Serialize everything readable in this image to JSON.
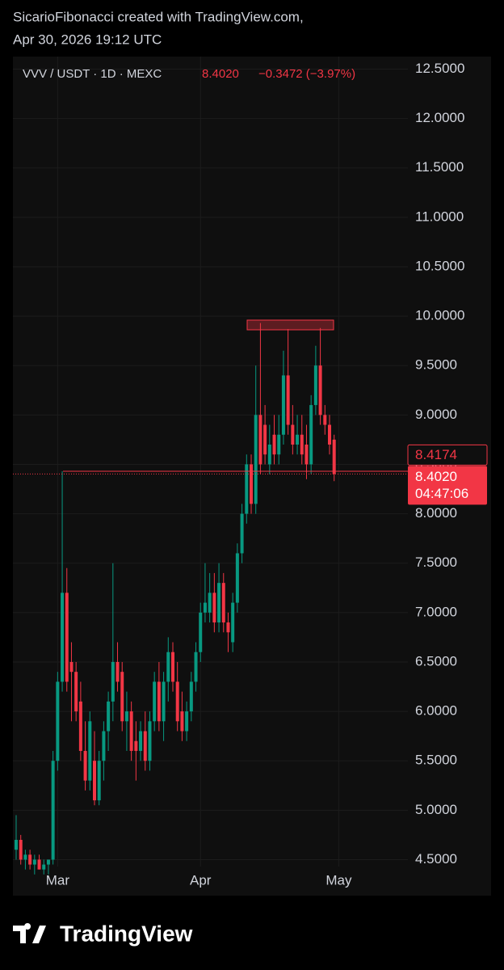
{
  "header": {
    "author_line": "SicarioFibonacci created with TradingView.com,",
    "date_line": "Apr 30, 2026 19:12 UTC"
  },
  "footer": {
    "brand": "TradingView"
  },
  "chart_data": {
    "type": "candlestick",
    "symbol": "VVV / USDT · 1D · MEXC",
    "last": "8.4020",
    "change": "−0.3472 (−3.97%)",
    "up_color": "#089981",
    "down_color": "#f23645",
    "open": [
      4.6,
      4.7,
      4.5,
      4.55,
      4.45,
      4.5,
      4.4,
      4.45,
      4.5,
      5.5,
      6.3,
      7.2,
      6.5,
      6.4,
      6.1,
      5.6,
      5.3,
      5.5,
      5.1,
      5.5,
      5.8,
      6.1,
      6.5,
      6.4,
      5.9,
      6.0,
      5.7,
      5.6,
      5.8,
      5.5,
      5.9,
      6.3,
      5.9,
      6.3,
      6.6,
      6.3,
      6.0,
      5.8,
      6.0,
      6.3,
      6.6,
      7.0,
      7.0,
      7.2,
      6.9,
      7.3,
      6.9,
      6.7,
      7.1,
      7.6,
      8.0,
      8.5,
      8.1,
      9.0,
      8.9,
      8.5,
      8.8,
      8.6,
      8.8,
      9.4,
      8.9,
      8.7,
      8.8,
      8.7,
      8.5,
      9.1,
      9.5,
      9.0,
      8.9,
      8.75
    ],
    "high": [
      4.95,
      4.75,
      4.6,
      4.6,
      4.55,
      4.55,
      4.5,
      4.5,
      5.6,
      6.4,
      8.43,
      7.45,
      6.7,
      6.5,
      6.3,
      5.9,
      6.0,
      5.8,
      5.6,
      5.9,
      6.2,
      7.5,
      6.7,
      6.5,
      6.2,
      6.1,
      5.9,
      5.9,
      6.0,
      6.0,
      6.4,
      6.5,
      6.4,
      6.75,
      6.7,
      6.5,
      6.2,
      6.1,
      6.4,
      6.7,
      7.1,
      7.5,
      7.4,
      7.4,
      7.5,
      7.4,
      7.0,
      7.2,
      7.7,
      8.1,
      8.6,
      8.6,
      9.5,
      9.93,
      9.1,
      8.9,
      9.0,
      9.0,
      9.65,
      9.87,
      9.1,
      9.0,
      9.0,
      8.9,
      9.2,
      9.7,
      9.88,
      9.1,
      9.0,
      8.8
    ],
    "low": [
      4.5,
      4.45,
      4.4,
      4.4,
      4.35,
      4.4,
      4.35,
      4.35,
      4.45,
      5.4,
      6.2,
      6.2,
      5.9,
      5.9,
      5.5,
      5.2,
      5.2,
      5.05,
      5.05,
      5.3,
      5.6,
      5.9,
      6.2,
      5.8,
      5.6,
      5.5,
      5.3,
      5.5,
      5.4,
      5.4,
      5.8,
      5.8,
      5.7,
      6.1,
      6.2,
      5.8,
      5.7,
      5.7,
      5.9,
      6.2,
      6.5,
      6.9,
      6.9,
      6.8,
      6.8,
      6.8,
      6.6,
      6.6,
      7.0,
      7.5,
      7.9,
      8.0,
      8.0,
      8.4,
      8.5,
      8.4,
      8.5,
      8.5,
      8.7,
      8.8,
      8.6,
      8.6,
      8.5,
      8.35,
      8.4,
      9.0,
      8.9,
      8.8,
      8.6,
      8.33
    ],
    "close": [
      4.7,
      4.5,
      4.55,
      4.45,
      4.5,
      4.4,
      4.45,
      4.5,
      5.5,
      6.3,
      7.2,
      6.3,
      6.4,
      6.0,
      5.6,
      5.3,
      5.9,
      5.1,
      5.5,
      5.8,
      6.1,
      6.5,
      6.3,
      5.9,
      6.0,
      5.6,
      5.6,
      5.8,
      5.5,
      5.9,
      6.3,
      5.9,
      6.3,
      6.6,
      6.3,
      5.9,
      5.8,
      6.0,
      6.3,
      6.6,
      7.0,
      7.1,
      7.2,
      6.9,
      7.3,
      6.9,
      6.8,
      7.1,
      7.6,
      8.0,
      8.5,
      8.1,
      9.0,
      8.5,
      8.6,
      8.7,
      8.6,
      8.8,
      9.4,
      8.9,
      8.7,
      8.8,
      8.6,
      8.5,
      9.1,
      9.5,
      9.0,
      8.9,
      8.7,
      8.402
    ],
    "ylim": [
      4.43,
      12.61
    ],
    "yticks": [
      {
        "value": 4.5,
        "label": "4.5000"
      },
      {
        "value": 5,
        "label": "5.0000"
      },
      {
        "value": 5.5,
        "label": "5.5000"
      },
      {
        "value": 6,
        "label": "6.0000"
      },
      {
        "value": 6.5,
        "label": "6.5000"
      },
      {
        "value": 7,
        "label": "7.0000"
      },
      {
        "value": 7.5,
        "label": "7.5000"
      },
      {
        "value": 8,
        "label": "8.0000"
      },
      {
        "value": 8.5,
        "label": "8.5000"
      },
      {
        "value": 9,
        "label": "9.0000"
      },
      {
        "value": 9.5,
        "label": "9.5000"
      },
      {
        "value": 10,
        "label": "10.0000"
      },
      {
        "value": 10.5,
        "label": "10.5000"
      },
      {
        "value": 11,
        "label": "11.0000"
      },
      {
        "value": 11.5,
        "label": "11.5000"
      },
      {
        "value": 12,
        "label": "12.0000"
      },
      {
        "value": 12.5,
        "label": "12.5000"
      }
    ],
    "xlim": [
      -0.7,
      85
    ],
    "xticks": [
      {
        "value": 9,
        "label": "Mar"
      },
      {
        "value": 40,
        "label": "Apr"
      },
      {
        "value": 70,
        "label": "May"
      }
    ],
    "grid": true,
    "price_labels": [
      {
        "value": 8.4174,
        "label": "8.4174"
      },
      {
        "value": 8.402,
        "label": "8.4020",
        "countdown": "04:47:06"
      }
    ]
  }
}
